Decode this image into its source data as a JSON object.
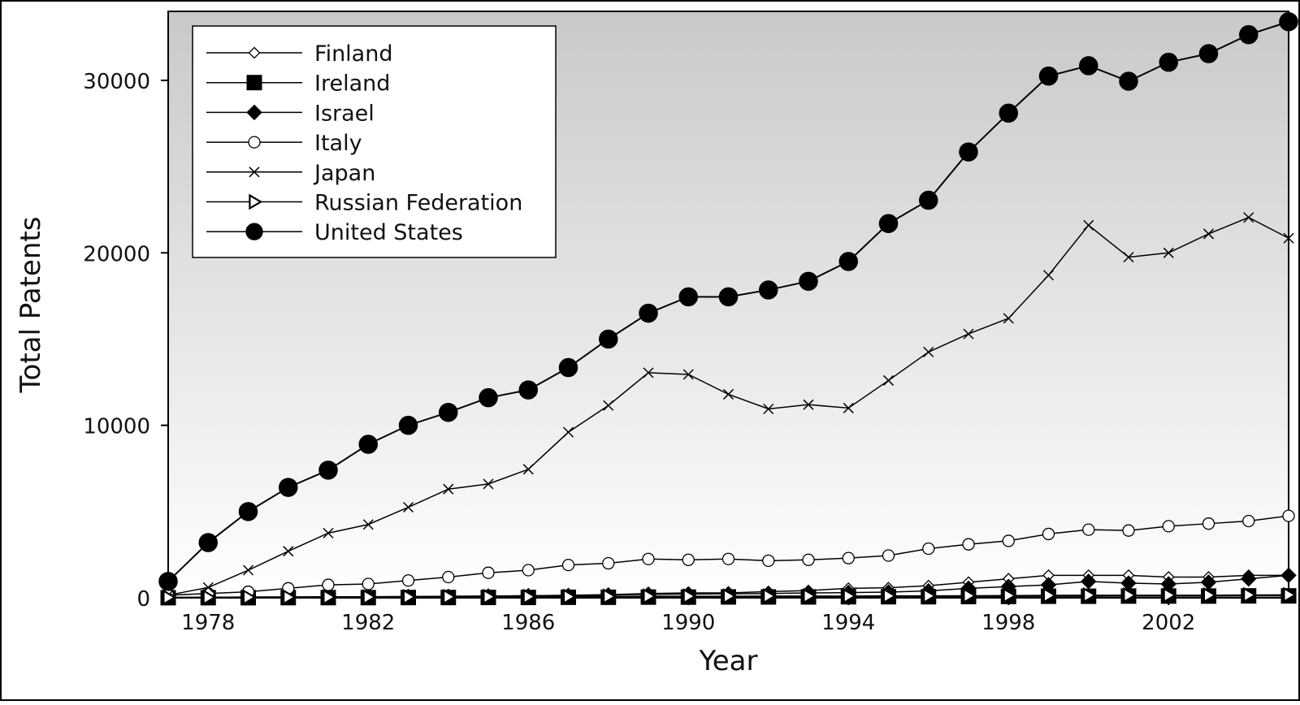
{
  "chart_data": {
    "type": "line",
    "title": "",
    "xlabel": "Year",
    "ylabel": "Total Patents",
    "xlim": [
      1977,
      2005
    ],
    "ylim": [
      0,
      34000
    ],
    "x_ticks": [
      1978,
      1982,
      1986,
      1990,
      1994,
      1998,
      2002
    ],
    "y_ticks": [
      0,
      10000,
      20000,
      30000
    ],
    "grid": false,
    "legend_position": "top-left",
    "background_gradient": [
      "#c9c9c9",
      "#ffffff"
    ],
    "x": [
      1977,
      1978,
      1979,
      1980,
      1981,
      1982,
      1983,
      1984,
      1985,
      1986,
      1987,
      1988,
      1989,
      1990,
      1991,
      1992,
      1993,
      1994,
      1995,
      1996,
      1997,
      1998,
      1999,
      2000,
      2001,
      2002,
      2003,
      2004,
      2005
    ],
    "series": [
      {
        "name": "Finland",
        "marker": "diamond-open",
        "values": [
          20,
          30,
          40,
          50,
          60,
          60,
          70,
          80,
          100,
          120,
          150,
          180,
          250,
          280,
          280,
          360,
          420,
          550,
          580,
          700,
          900,
          1100,
          1300,
          1300,
          1300,
          1200,
          1200,
          1300,
          1300
        ]
      },
      {
        "name": "Ireland",
        "marker": "square-filled",
        "values": [
          5,
          5,
          5,
          10,
          10,
          10,
          15,
          15,
          20,
          20,
          30,
          30,
          40,
          40,
          50,
          50,
          50,
          60,
          60,
          60,
          70,
          80,
          90,
          90,
          100,
          100,
          100,
          110,
          110
        ]
      },
      {
        "name": "Israel",
        "marker": "diamond-filled",
        "values": [
          20,
          30,
          40,
          50,
          60,
          60,
          70,
          80,
          100,
          120,
          130,
          160,
          200,
          220,
          230,
          250,
          280,
          300,
          330,
          400,
          550,
          650,
          750,
          950,
          850,
          800,
          900,
          1100,
          1300
        ]
      },
      {
        "name": "Italy",
        "marker": "circle-open",
        "values": [
          150,
          250,
          350,
          550,
          750,
          800,
          1000,
          1200,
          1450,
          1600,
          1900,
          2000,
          2250,
          2200,
          2250,
          2150,
          2200,
          2300,
          2450,
          2850,
          3100,
          3300,
          3700,
          3950,
          3900,
          4150,
          4300,
          4450,
          4750
        ]
      },
      {
        "name": "Japan",
        "marker": "x",
        "values": [
          150,
          600,
          1600,
          2700,
          3750,
          4250,
          5250,
          6300,
          6600,
          7450,
          9600,
          11150,
          13050,
          12950,
          11800,
          10950,
          11200,
          11000,
          12600,
          14250,
          15300,
          16200,
          18700,
          21600,
          19750,
          20000,
          21100,
          22050,
          20850
        ]
      },
      {
        "name": "Russian Federation",
        "marker": "triangle-right-open",
        "values": [
          20,
          25,
          30,
          35,
          40,
          45,
          50,
          55,
          60,
          65,
          70,
          80,
          90,
          90,
          90,
          100,
          100,
          100,
          110,
          110,
          120,
          130,
          140,
          150,
          150,
          150,
          150,
          160,
          170
        ]
      },
      {
        "name": "United States",
        "marker": "circle-filled",
        "values": [
          950,
          3200,
          5000,
          6400,
          7400,
          8900,
          10000,
          10750,
          11600,
          12050,
          13350,
          15000,
          16500,
          17450,
          17450,
          17850,
          18350,
          19500,
          21700,
          23050,
          25850,
          28100,
          30250,
          30850,
          29950,
          31050,
          31550,
          32650,
          33400
        ]
      }
    ]
  }
}
